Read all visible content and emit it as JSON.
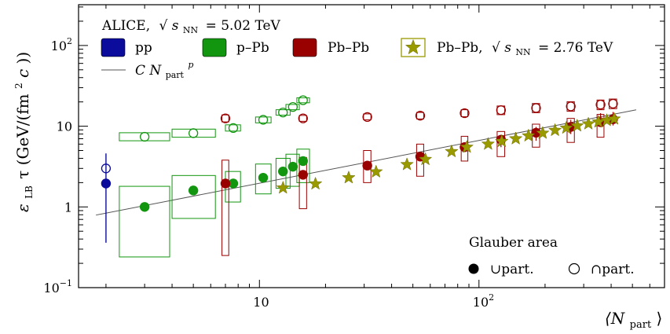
{
  "chart_data": {
    "type": "scatter",
    "x_scale": "log",
    "y_scale": "log",
    "xlim": [
      1.5,
      700
    ],
    "ylim": [
      0.1,
      320
    ],
    "xlabel": "⟨N",
    "xlabel_sub": "part",
    "xlabel_close": "⟩",
    "ylabel": {
      "eps": "ε",
      "eps_sub": "LB",
      "tau": "τ (GeV/(fm",
      "sup": "2",
      "c": "c",
      "close": "))"
    },
    "x_ticks": [
      {
        "value": 10,
        "label": "10"
      },
      {
        "value": 100,
        "label": "10",
        "exp": "2"
      }
    ],
    "y_ticks": [
      {
        "value": 0.1,
        "label": "10",
        "exp": "−1"
      },
      {
        "value": 1,
        "label": "1"
      },
      {
        "value": 10,
        "label": "10"
      },
      {
        "value": 100,
        "label": "10",
        "exp": "2"
      }
    ],
    "header": {
      "experiment": "ALICE,",
      "sqrt": "√",
      "s": "s",
      "s_sub": "NN",
      "eq": "= 5.02 TeV"
    },
    "legend": [
      {
        "label": "pp",
        "color": "#0b0b9c",
        "marker": "box"
      },
      {
        "label": "p–Pb",
        "color": "#12960f",
        "marker": "box"
      },
      {
        "label": "Pb–Pb",
        "color": "#990000",
        "marker": "box"
      },
      {
        "label": "Pb–Pb,",
        "color": "#999900",
        "marker": "star",
        "energy": {
          "sqrt": "√",
          "s": "s",
          "s_sub": "NN",
          "eq": "= 2.76 TeV"
        }
      }
    ],
    "fit_label": {
      "C": "C",
      "N": "N",
      "sub": "part",
      "sup": "p"
    },
    "fit": {
      "C": 0.58,
      "p": 0.53,
      "x_from": 1.8,
      "x_to": 520
    },
    "glauber": {
      "title": "Glauber area",
      "union": "∪part.",
      "intersection": "∩part."
    },
    "colors": {
      "pp": "#0b0b9c",
      "pPb": "#12960f",
      "PbPb": "#990000",
      "PbPb276": "#999900",
      "fit": "#555555"
    },
    "series": [
      {
        "name": "pp",
        "color": "#0b0b9c",
        "union": [
          {
            "x": 2.0,
            "y": 1.95,
            "ylo": 0.36,
            "yhi": 4.6
          }
        ],
        "intersection": [
          {
            "x": 2.0,
            "y": 3.0
          }
        ]
      },
      {
        "name": "p–Pb",
        "color": "#12960f",
        "union": [
          {
            "x": 3.0,
            "y": 1.0,
            "sys_x": [
              2.3,
              3.9
            ],
            "sys_y": [
              0.24,
              1.8
            ]
          },
          {
            "x": 5.0,
            "y": 1.6,
            "sys_x": [
              4.0,
              6.3
            ],
            "sys_y": [
              0.72,
              2.45
            ]
          },
          {
            "x": 7.6,
            "y": 1.95,
            "sys_x": [
              7.0,
              8.2
            ],
            "sys_y": [
              1.15,
              2.75
            ]
          },
          {
            "x": 10.4,
            "y": 2.3,
            "sys_x": [
              9.6,
              11.3
            ],
            "sys_y": [
              1.45,
              3.4
            ]
          },
          {
            "x": 12.8,
            "y": 2.75,
            "sys_x": [
              11.9,
              13.8
            ],
            "sys_y": [
              1.7,
              4.0
            ]
          },
          {
            "x": 14.2,
            "y": 3.15,
            "sys_x": [
              13.2,
              15.2
            ],
            "sys_y": [
              1.8,
              4.5
            ]
          },
          {
            "x": 15.8,
            "y": 3.7,
            "sys_x": [
              14.8,
              16.9
            ],
            "sys_y": [
              2.0,
              5.2
            ]
          }
        ],
        "intersection": [
          {
            "x": 3.0,
            "y": 7.4,
            "sys_x": [
              2.3,
              3.9
            ],
            "sys_y": [
              6.6,
              8.3
            ]
          },
          {
            "x": 5.0,
            "y": 8.2,
            "sys_x": [
              4.0,
              6.3
            ],
            "sys_y": [
              7.3,
              9.2
            ]
          },
          {
            "x": 7.6,
            "y": 9.5,
            "sys_x": [
              7.0,
              8.2
            ],
            "sys_y": [
              8.7,
              10.4
            ]
          },
          {
            "x": 10.4,
            "y": 12.0,
            "sys_x": [
              9.6,
              11.3
            ],
            "sys_y": [
              11.0,
              13.0
            ]
          },
          {
            "x": 12.8,
            "y": 14.8,
            "sys_x": [
              11.9,
              13.8
            ],
            "sys_y": [
              13.7,
              16.0
            ]
          },
          {
            "x": 14.2,
            "y": 17.3,
            "sys_x": [
              13.2,
              15.2
            ],
            "sys_y": [
              16.0,
              18.6
            ]
          },
          {
            "x": 15.8,
            "y": 21.0,
            "sys_x": [
              14.8,
              16.9
            ],
            "sys_y": [
              19.5,
              22.5
            ]
          }
        ]
      },
      {
        "name": "Pb–Pb",
        "color": "#990000",
        "union": [
          {
            "x": 7.0,
            "y": 1.95,
            "sys_x": [
              6.75,
              7.25
            ],
            "sys_y": [
              0.25,
              3.8
            ]
          },
          {
            "x": 15.8,
            "y": 2.5,
            "sys_x": [
              15.2,
              16.4
            ],
            "sys_y": [
              0.95,
              4.1
            ]
          },
          {
            "x": 31,
            "y": 3.25,
            "sys_x": [
              29.8,
              32.2
            ],
            "sys_y": [
              2.0,
              5.0
            ]
          },
          {
            "x": 54,
            "y": 4.2,
            "sys_x": [
              52,
              56
            ],
            "sys_y": [
              2.4,
              6.0
            ]
          },
          {
            "x": 86,
            "y": 5.5,
            "sys_x": [
              83,
              89
            ],
            "sys_y": [
              3.7,
              7.5
            ]
          },
          {
            "x": 126,
            "y": 6.8,
            "sys_x": [
              121,
              131
            ],
            "sys_y": [
              4.2,
              8.6
            ]
          },
          {
            "x": 182,
            "y": 8.3,
            "sys_x": [
              175,
              189
            ],
            "sys_y": [
              5.5,
              10.6
            ]
          },
          {
            "x": 262,
            "y": 9.8,
            "sys_x": [
              252,
              272
            ],
            "sys_y": [
              6.3,
              12.5
            ]
          },
          {
            "x": 358,
            "y": 11.2,
            "sys_x": [
              345,
              371
            ],
            "sys_y": [
              7.3,
              14.0
            ]
          }
        ],
        "union_err": [
          {
            "x": 126,
            "lo": 5.5,
            "hi": 7.8
          },
          {
            "x": 182,
            "lo": 6.6,
            "hi": 9.8
          },
          {
            "x": 262,
            "lo": 8.0,
            "hi": 12.0
          },
          {
            "x": 358,
            "lo": 10.0,
            "hi": 14.5
          },
          {
            "x": 408,
            "lo": 10.2,
            "hi": 15.0
          }
        ],
        "union_extra": [
          {
            "x": 408,
            "y": 12.2
          }
        ],
        "intersection": [
          {
            "x": 7.0,
            "y": 12.5,
            "sys_x": [
              6.75,
              7.25
            ],
            "sys_y": [
              11.3,
              13.8
            ]
          },
          {
            "x": 15.8,
            "y": 12.5,
            "sys_x": [
              15.2,
              16.4
            ],
            "sys_y": [
              11.5,
              13.6
            ]
          },
          {
            "x": 31,
            "y": 13.0,
            "sys_x": [
              29.8,
              32.2
            ],
            "sys_y": [
              12.0,
              14.2
            ]
          },
          {
            "x": 54,
            "y": 13.5,
            "sys_x": [
              52,
              56
            ],
            "sys_y": [
              12.3,
              14.8
            ]
          },
          {
            "x": 86,
            "y": 14.5,
            "sys_x": [
              83,
              89
            ],
            "sys_y": [
              13.1,
              16.0
            ]
          },
          {
            "x": 126,
            "y": 15.8,
            "sys_x": [
              121,
              131
            ],
            "sys_y": [
              13.9,
              17.8
            ]
          },
          {
            "x": 182,
            "y": 16.8,
            "sys_x": [
              175,
              189
            ],
            "sys_y": [
              14.7,
              19.1
            ]
          },
          {
            "x": 262,
            "y": 17.6,
            "sys_x": [
              252,
              272
            ],
            "sys_y": [
              15.3,
              20.1
            ]
          },
          {
            "x": 358,
            "y": 18.5,
            "sys_x": [
              345,
              371
            ],
            "sys_y": [
              16.0,
              21.1
            ]
          },
          {
            "x": 408,
            "y": 19.0,
            "sys_x": [
              392,
              424
            ],
            "sys_y": [
              16.5,
              21.7
            ]
          }
        ]
      },
      {
        "name": "Pb–Pb, √sNN = 2.76 TeV",
        "color": "#999900",
        "points": [
          {
            "x": 12.8,
            "y": 1.72
          },
          {
            "x": 18,
            "y": 1.93
          },
          {
            "x": 25.5,
            "y": 2.3
          },
          {
            "x": 34,
            "y": 2.72
          },
          {
            "x": 47,
            "y": 3.35
          },
          {
            "x": 57,
            "y": 3.88
          },
          {
            "x": 75,
            "y": 4.85
          },
          {
            "x": 88,
            "y": 5.5
          },
          {
            "x": 110,
            "y": 6.0
          },
          {
            "x": 127,
            "y": 6.5
          },
          {
            "x": 147,
            "y": 7.0
          },
          {
            "x": 168,
            "y": 7.6
          },
          {
            "x": 195,
            "y": 8.2
          },
          {
            "x": 222,
            "y": 8.9
          },
          {
            "x": 250,
            "y": 9.5
          },
          {
            "x": 280,
            "y": 10.1
          },
          {
            "x": 315,
            "y": 10.7
          },
          {
            "x": 350,
            "y": 11.3
          },
          {
            "x": 382,
            "y": 11.8
          },
          {
            "x": 413,
            "y": 12.3
          }
        ]
      }
    ]
  }
}
